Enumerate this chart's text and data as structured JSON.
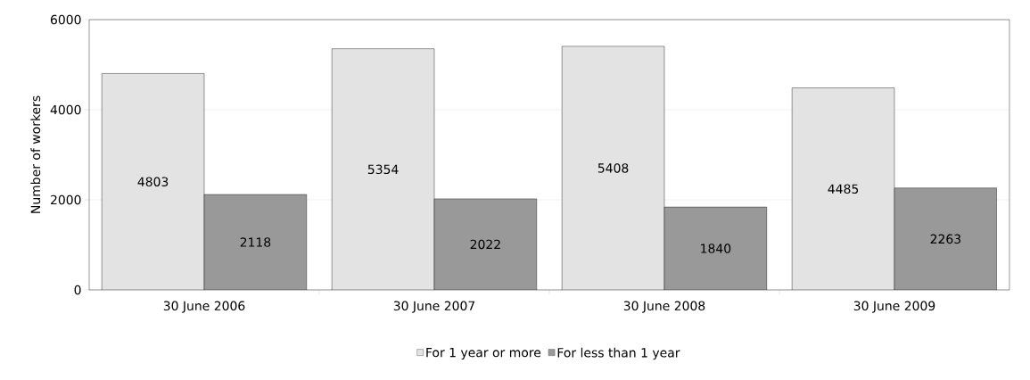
{
  "chart_data": {
    "type": "bar",
    "ylabel": "Number of workers",
    "categories": [
      "30 June 2006",
      "30 June 2007",
      "30 June 2008",
      "30 June 2009"
    ],
    "series": [
      {
        "name": "For 1 year or more",
        "color": "#e3e3e3",
        "values": [
          4803,
          5354,
          5408,
          4485
        ]
      },
      {
        "name": "For less than 1 year",
        "color": "#999999",
        "values": [
          2118,
          2022,
          1840,
          2263
        ]
      }
    ],
    "ylim": [
      0,
      6000
    ],
    "yticks": [
      0,
      2000,
      4000,
      6000
    ],
    "grid": "y",
    "legend": "bottom",
    "data_labels": true
  }
}
